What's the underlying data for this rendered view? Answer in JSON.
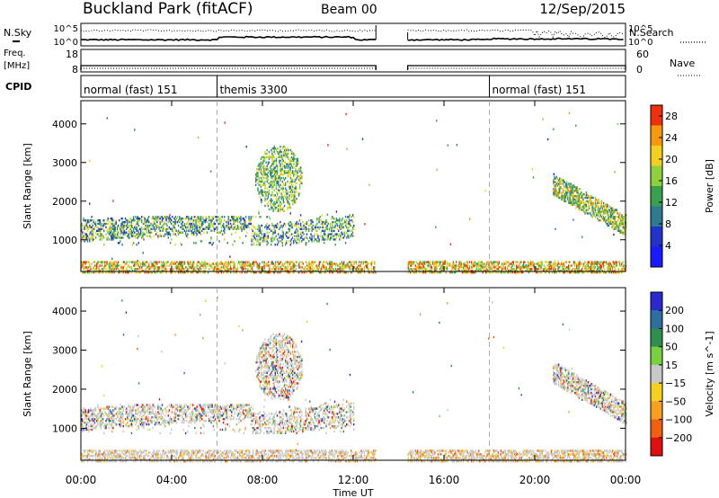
{
  "header": {
    "title": "Buckland Park (fitACF)",
    "beam": "Beam 00",
    "date": "12/Sep/2015"
  },
  "labels": {
    "nsky": "N.Sky",
    "nsearch": "N.Search",
    "freq": "Freq.",
    "mhz": "[MHz]",
    "nave": "Nave",
    "cpid": "CPID",
    "time_axis": "Time UT"
  },
  "mini_axes": {
    "noise_left_ticks": [
      "10^5",
      "10^0"
    ],
    "noise_right_ticks": [
      "10^5",
      "10^0"
    ],
    "freq_left_ticks": [
      "18",
      "8"
    ],
    "nave_right_ticks": [
      "60",
      "0"
    ]
  },
  "cpid_segments": [
    {
      "label": "normal (fast) 151",
      "start": 0.0
    },
    {
      "label": "themis 3300",
      "start": 6.0
    },
    {
      "label": "normal (fast) 151",
      "start": 18.0
    }
  ],
  "chart_data": [
    {
      "type": "heatmap",
      "title": "",
      "xlabel": "Time UT",
      "ylabel": "Slant Range [km]",
      "colorbar_label": "Power [dB]",
      "x_ticks": [
        "00:00",
        "04:00",
        "08:00",
        "12:00",
        "16:00",
        "20:00",
        "00:00"
      ],
      "y_ticks": [
        1000,
        2000,
        3000,
        4000
      ],
      "ylim": [
        180,
        4600
      ],
      "xlim": [
        0,
        24
      ],
      "colorbar_ticks": [
        4,
        8,
        12,
        16,
        20,
        24,
        28
      ],
      "colorbar_range": [
        0,
        30
      ],
      "colors": [
        "#1a1aff",
        "#2233cc",
        "#2f7a8f",
        "#3aa050",
        "#8fd040",
        "#f2d020",
        "#f59a10",
        "#ef3010"
      ],
      "data_gaps_ut": [
        [
          13.0,
          14.4
        ]
      ],
      "features": [
        {
          "desc": "band",
          "ut": [
            0.0,
            7.5
          ],
          "range_km": [
            900,
            1600
          ]
        },
        {
          "desc": "patch",
          "ut": [
            6.5,
            10.0
          ],
          "range_km": [
            1500,
            3400
          ]
        },
        {
          "desc": "patch",
          "ut": [
            20.8,
            24.0
          ],
          "range_km": [
            900,
            2600
          ]
        },
        {
          "desc": "ground scatter",
          "ut": [
            0.0,
            24.0
          ],
          "range_km": [
            180,
            500
          ]
        }
      ]
    },
    {
      "type": "heatmap",
      "title": "",
      "xlabel": "Time UT",
      "ylabel": "Slant Range [km]",
      "colorbar_label": "Velocity [m s^-1]",
      "x_ticks": [
        "00:00",
        "04:00",
        "08:00",
        "12:00",
        "16:00",
        "20:00",
        "00:00"
      ],
      "y_ticks": [
        1000,
        2000,
        3000,
        4000
      ],
      "ylim": [
        180,
        4600
      ],
      "xlim": [
        0,
        24
      ],
      "colorbar_ticks": [
        "200",
        "100",
        "50",
        "15",
        "−15",
        "−50",
        "−100",
        "−200"
      ],
      "colorbar_range": [
        -250,
        250
      ],
      "colors": [
        "#2a2ad0",
        "#2f6f9f",
        "#2f8f4f",
        "#7ad040",
        "#c8c8c8",
        "#f6d020",
        "#f7a020",
        "#f06010",
        "#e01010"
      ],
      "data_gaps_ut": [
        [
          13.0,
          14.4
        ]
      ]
    }
  ]
}
